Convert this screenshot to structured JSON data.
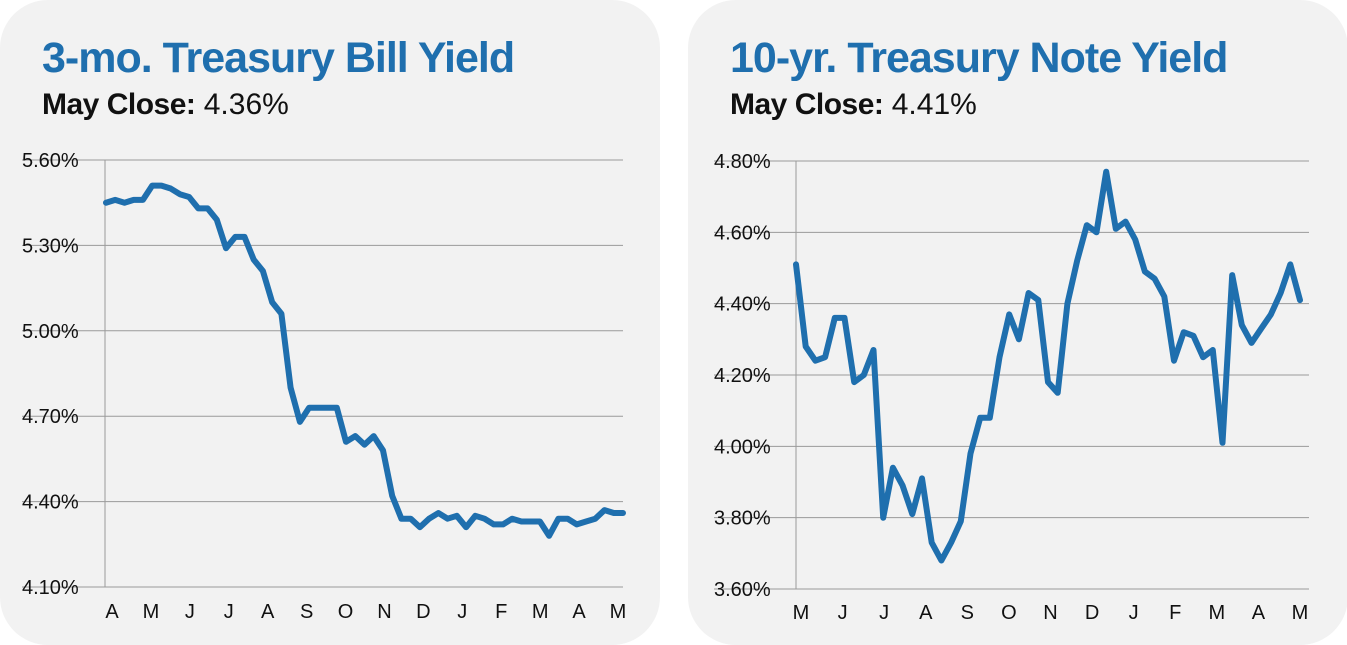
{
  "chart_data": [
    {
      "type": "line",
      "title": "3-mo. Treasury Bill Yield",
      "subtitle_label": "May Close:",
      "subtitle_value": "4.36%",
      "x_labels": [
        "A",
        "M",
        "J",
        "J",
        "A",
        "S",
        "O",
        "N",
        "D",
        "J",
        "F",
        "M",
        "A",
        "M"
      ],
      "y_ticks": [
        "5.60%",
        "5.30%",
        "5.00%",
        "4.70%",
        "4.40%",
        "4.10%"
      ],
      "ylim": [
        4.1,
        5.6
      ],
      "grid": true,
      "line_color": "#1f6fae",
      "series": [
        {
          "values": [
            5.45,
            5.46,
            5.45,
            5.46,
            5.46,
            5.51,
            5.51,
            5.5,
            5.48,
            5.47,
            5.43,
            5.43,
            5.39,
            5.29,
            5.33,
            5.33,
            5.25,
            5.21,
            5.1,
            5.06,
            4.8,
            4.68,
            4.73,
            4.73,
            4.73,
            4.73,
            4.61,
            4.63,
            4.6,
            4.63,
            4.58,
            4.42,
            4.34,
            4.34,
            4.31,
            4.34,
            4.36,
            4.34,
            4.35,
            4.31,
            4.35,
            4.34,
            4.32,
            4.32,
            4.34,
            4.33,
            4.33,
            4.33,
            4.28,
            4.34,
            4.34,
            4.32,
            4.33,
            4.34,
            4.37,
            4.36,
            4.36
          ]
        }
      ]
    },
    {
      "type": "line",
      "title": "10-yr. Treasury Note Yield",
      "subtitle_label": "May Close:",
      "subtitle_value": "4.41%",
      "x_labels": [
        "M",
        "J",
        "J",
        "A",
        "S",
        "O",
        "N",
        "D",
        "J",
        "F",
        "M",
        "A",
        "M"
      ],
      "y_ticks": [
        "4.80%",
        "4.60%",
        "4.40%",
        "4.20%",
        "4.00%",
        "3.80%",
        "3.60%"
      ],
      "ylim": [
        3.6,
        4.8
      ],
      "grid": true,
      "line_color": "#1f6fae",
      "series": [
        {
          "values": [
            4.51,
            4.28,
            4.24,
            4.25,
            4.36,
            4.36,
            4.18,
            4.2,
            4.27,
            3.8,
            3.94,
            3.89,
            3.81,
            3.91,
            3.73,
            3.68,
            3.73,
            3.79,
            3.98,
            4.08,
            4.08,
            4.25,
            4.37,
            4.3,
            4.43,
            4.41,
            4.18,
            4.15,
            4.4,
            4.52,
            4.62,
            4.6,
            4.77,
            4.61,
            4.63,
            4.58,
            4.49,
            4.47,
            4.42,
            4.24,
            4.32,
            4.31,
            4.25,
            4.27,
            4.01,
            4.48,
            4.34,
            4.29,
            4.33,
            4.37,
            4.43,
            4.51,
            4.41
          ]
        }
      ]
    }
  ]
}
